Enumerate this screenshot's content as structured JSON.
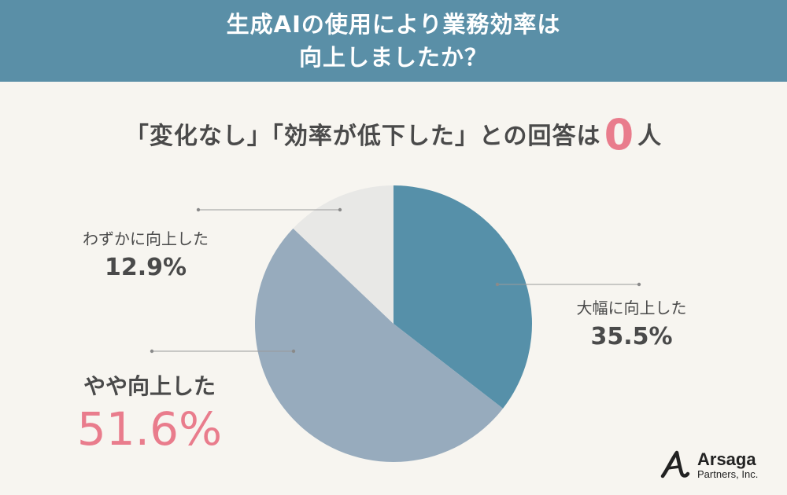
{
  "header": {
    "line1": "生成AIの使用により業務効率は",
    "line2": "向上しましたか？"
  },
  "subtitle": {
    "prefix": "「変化なし」「効率が低下した」との回答は",
    "count": "0",
    "suffix": "人"
  },
  "chart_data": {
    "type": "pie",
    "title": "生成AIの使用により業務効率は向上しましたか？",
    "slices": [
      {
        "label": "大幅に向上した",
        "value": 35.5,
        "display": "35.5%",
        "color": "#5690a9"
      },
      {
        "label": "やや向上した",
        "value": 51.6,
        "display": "51.6%",
        "color": "#97abbd"
      },
      {
        "label": "わずかに向上した",
        "value": 12.9,
        "display": "12.9%",
        "color": "#e8e8e6"
      }
    ],
    "start_angle": "12 o'clock",
    "direction": "clockwise"
  },
  "logo": {
    "brand": "Arsaga",
    "sub": "Partners, Inc."
  }
}
